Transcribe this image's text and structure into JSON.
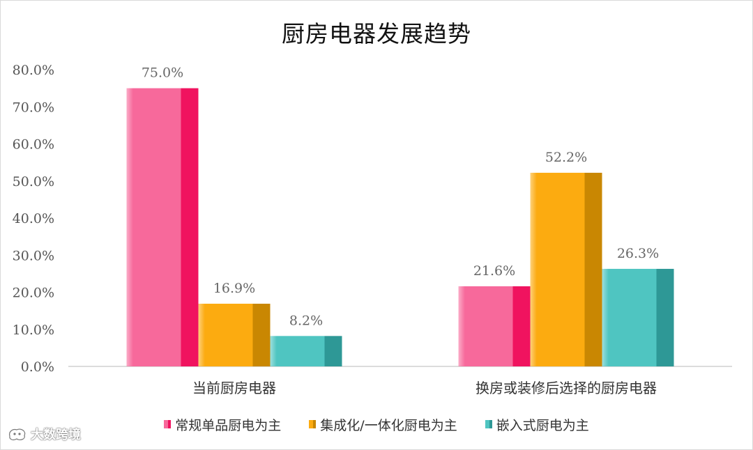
{
  "chart_data": {
    "type": "bar",
    "title": "厨房电器发展趋势",
    "categories": [
      "当前厨房电器",
      "换房或装修后选择的厨房电器"
    ],
    "series": [
      {
        "name": "常规单品厨电为主",
        "values": [
          75.0,
          21.6
        ],
        "color": "#f7699b",
        "side_color": "#f0135f"
      },
      {
        "name": "集成化/一体化厨电为主",
        "values": [
          16.9,
          52.2
        ],
        "color": "#fcab10",
        "side_color": "#c98702"
      },
      {
        "name": "嵌入式厨电为主",
        "values": [
          8.2,
          26.3
        ],
        "color": "#4fc5c1",
        "side_color": "#2e9896"
      }
    ],
    "y_ticks": [
      "0.0%",
      "10.0%",
      "20.0%",
      "30.0%",
      "40.0%",
      "50.0%",
      "60.0%",
      "70.0%",
      "80.0%"
    ],
    "data_labels": [
      [
        "75.0%",
        "21.6%"
      ],
      [
        "16.9%",
        "52.2%"
      ],
      [
        "8.2%",
        "26.3%"
      ]
    ],
    "ylim": [
      0,
      80
    ],
    "grid": false,
    "legend_position": "bottom"
  },
  "watermark": {
    "text": "大数跨境"
  }
}
